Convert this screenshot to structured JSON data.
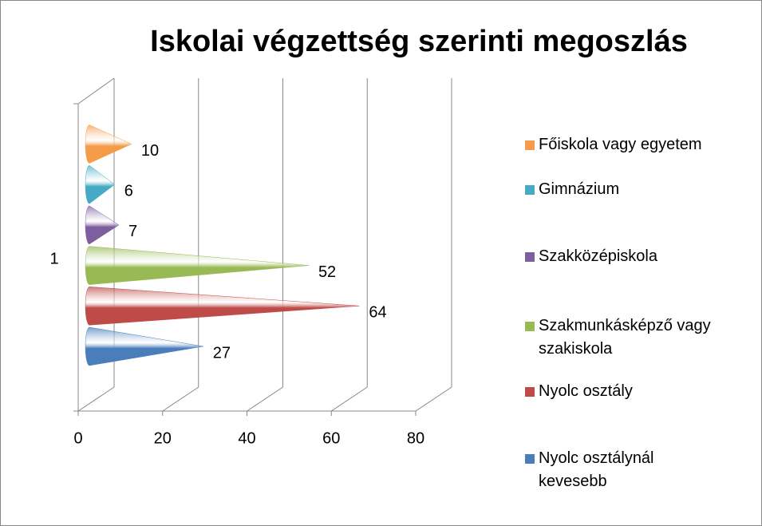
{
  "chart_data": {
    "type": "cone-bar",
    "title": "Iskolai végzettség szerinti megoszlás",
    "categories": [
      "1"
    ],
    "series": [
      {
        "name": "Nyolc osztálynál kevesebb",
        "color": "#4a7ebb",
        "values": [
          27
        ]
      },
      {
        "name": "Nyolc osztály",
        "color": "#be4b48",
        "values": [
          64
        ]
      },
      {
        "name": "Szakmunkásképző vagy szakiskola",
        "color": "#98b954",
        "values": [
          52
        ]
      },
      {
        "name": "Szakközépiskola",
        "color": "#7d5fa0",
        "values": [
          7
        ]
      },
      {
        "name": "Gimnázium",
        "color": "#46aac5",
        "values": [
          6
        ]
      },
      {
        "name": "Főiskola vagy egyetem",
        "color": "#f59c4a",
        "values": [
          10
        ]
      }
    ],
    "xlim": [
      0,
      80
    ],
    "xticks": [
      0,
      20,
      40,
      60,
      80
    ],
    "grid": true,
    "legend": "right"
  }
}
